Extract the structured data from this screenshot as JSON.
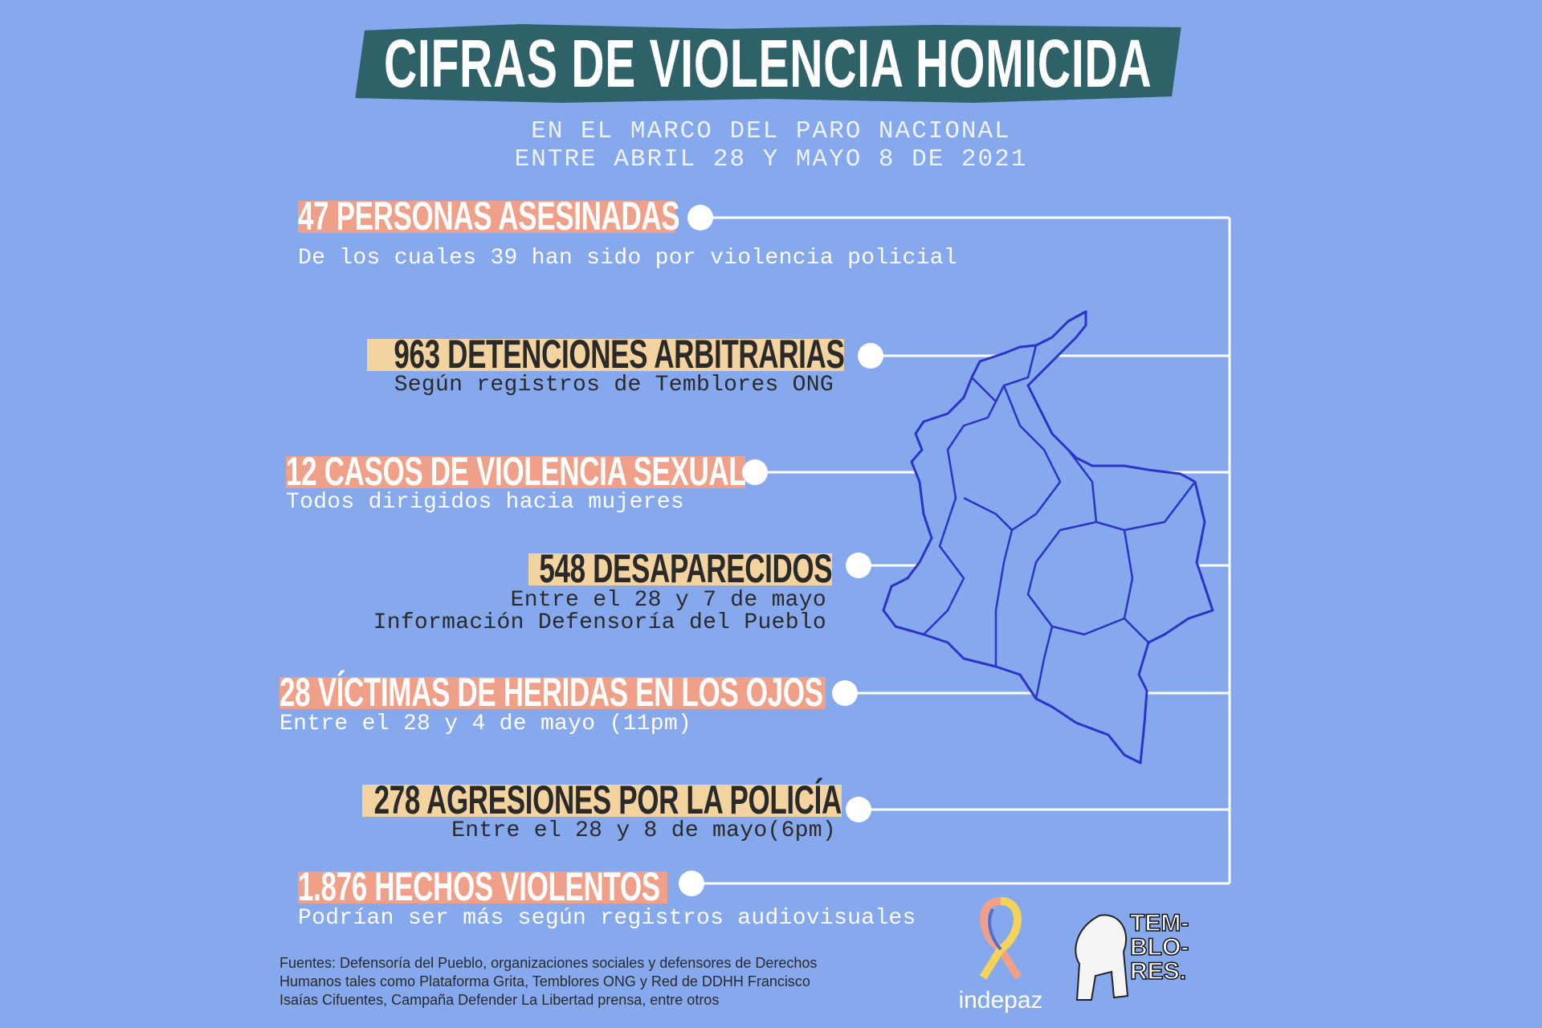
{
  "title": "CIFRAS DE VIOLENCIA HOMICIDA",
  "subtitle": [
    "EN EL MARCO DEL PARO NACIONAL",
    "ENTRE ABRIL 28 Y MAYO 8 DE 2021"
  ],
  "colors": {
    "background": "#86a8ec",
    "title_band": "#2e6268",
    "salmon": "#f0a088",
    "tan": "#f3d3a0",
    "map_lines": "#2b33c8"
  },
  "items": [
    {
      "headline": "47 PERSONAS ASESINADAS",
      "details": [
        "De los cuales 39 han sido por violencia policial"
      ]
    },
    {
      "headline": "963 DETENCIONES ARBITRARIAS",
      "details": [
        "Según registros de Temblores ONG"
      ]
    },
    {
      "headline": "12 CASOS DE VIOLENCIA SEXUAL",
      "details": [
        "Todos dirigidos hacia mujeres"
      ]
    },
    {
      "headline": "548 DESAPARECIDOS",
      "details": [
        "Entre el 28 y 7 de mayo",
        "Información Defensoría del Pueblo"
      ]
    },
    {
      "headline": "28 VÍCTIMAS DE HERIDAS EN LOS OJOS",
      "details": [
        "Entre el 28 y 4 de mayo (11pm)"
      ]
    },
    {
      "headline": "278 AGRESIONES POR LA POLICÍA",
      "details": [
        "Entre el 28 y 8 de mayo(6pm)"
      ]
    },
    {
      "headline": "1.876 HECHOS VIOLENTOS",
      "details": [
        "Podrían ser más según registros audiovisuales"
      ]
    }
  ],
  "sources": [
    "Fuentes: Defensoría del Pueblo, organizaciones sociales y defensores de Derechos",
    "Humanos tales como Plataforma Grita, Temblores ONG y Red de DDHH Francisco",
    "Isaías Cifuentes, Campaña Defender La Libertad prensa, entre otros"
  ],
  "logos": {
    "indepaz": "indepaz",
    "temblores": [
      "TEM-",
      "BLO-",
      "RES."
    ]
  }
}
